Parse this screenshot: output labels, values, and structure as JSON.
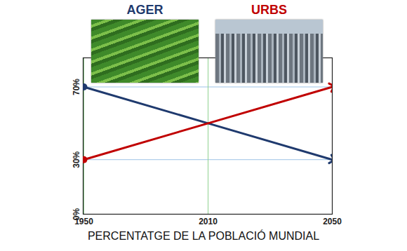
{
  "chart_data": {
    "type": "line",
    "xlabel": "PERCENTATGE DE LA POBLACIÓ MUNDIAL",
    "categories": [
      "1950",
      "2010",
      "2050"
    ],
    "series": [
      {
        "name": "AGER",
        "color": "#1f3a6e",
        "values": [
          70,
          50,
          30
        ],
        "marker": "arrow"
      },
      {
        "name": "URBS",
        "color": "#c00000",
        "values": [
          30,
          50,
          70
        ],
        "marker": "arrow"
      }
    ],
    "ylim": [
      0,
      86
    ],
    "yticks": [
      {
        "value": 0,
        "label": "0%"
      },
      {
        "value": 30,
        "label": "30%"
      },
      {
        "value": 70,
        "label": "70%"
      }
    ],
    "grid": true
  }
}
